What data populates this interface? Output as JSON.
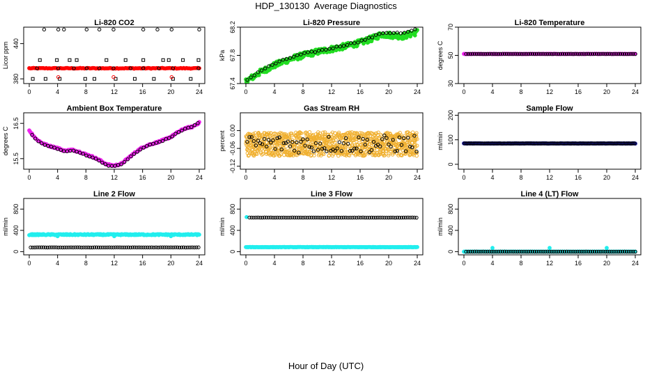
{
  "title": "HDP_130130  Average Diagnostics",
  "xlabel": "Hour of Day (UTC)",
  "colors": {
    "red": "#ff0000",
    "green": "#22dd22",
    "magenta": "#ee22ee",
    "orange": "#f0b030",
    "blue": "#1a1aa0",
    "cyan": "#22eeee",
    "black": "#000000"
  },
  "chart_data": [
    {
      "type": "scatter",
      "title": "Li-820 CO2",
      "ylabel": "Licor ppm",
      "xlim": [
        0,
        24
      ],
      "ylim": [
        372,
        468
      ],
      "xticks": [
        "0",
        "4",
        "8",
        "12",
        "16",
        "20",
        "24"
      ],
      "yticks": [
        "380",
        "440"
      ],
      "ytick_values": [
        380,
        440
      ],
      "series": [
        {
          "color": "red",
          "marker": "filled",
          "x_start": 0,
          "x_end": 24,
          "step": 0.2,
          "y_mode": "flat",
          "y": 398,
          "jitter": 0.6
        },
        {
          "color": "black",
          "marker": "open",
          "x": [
            1.1,
            4.1,
            6.3,
            8.1,
            9.9,
            11.9,
            14.3,
            16.1,
            18.3,
            20.3,
            23.9
          ],
          "y": [
            398,
            398,
            398,
            398,
            398,
            398,
            398,
            398,
            398,
            398,
            398
          ]
        },
        {
          "color": "black",
          "marker": "open",
          "x": [
            2.1,
            4.1,
            4.9,
            8.1,
            9.9,
            11.9,
            16.1,
            18.1,
            20.1,
            24.0
          ],
          "y": [
            464,
            464,
            464,
            464,
            464,
            464,
            464,
            464,
            464,
            464
          ]
        },
        {
          "color": "black",
          "marker": "square",
          "x": [
            0.5,
            1.5,
            2.3,
            3.9,
            4.3,
            5.7,
            6.7,
            7.9,
            9.2,
            10.9,
            12.2,
            13.6,
            14.9,
            16.1,
            17.6,
            18.9,
            19.7,
            20.3,
            21.7,
            22.8,
            23.9
          ],
          "y": [
            380,
            412,
            380,
            412,
            380,
            412,
            412,
            380,
            380,
            412,
            380,
            412,
            380,
            412,
            380,
            412,
            412,
            380,
            412,
            380,
            412
          ]
        },
        {
          "color": "red",
          "marker": "open",
          "x": [
            4.1,
            11.9,
            20.1
          ],
          "y": [
            383,
            383,
            383
          ]
        }
      ]
    },
    {
      "type": "scatter",
      "title": "Li-820 Pressure",
      "ylabel": "kPa",
      "xlim": [
        0,
        24
      ],
      "ylim": [
        67.4,
        68.2
      ],
      "xticks": [
        "0",
        "4",
        "8",
        "12",
        "16",
        "20",
        "24"
      ],
      "yticks": [
        "67.4",
        "67.8",
        "68.2"
      ],
      "ytick_values": [
        67.4,
        67.8,
        68.2
      ],
      "series": [
        {
          "color": "green",
          "marker": "filled",
          "x_start": 0,
          "x_end": 24,
          "step": 0.08,
          "y_mode": "knots",
          "knots": [
            [
              0,
              67.43
            ],
            [
              2,
              67.56
            ],
            [
              4,
              67.66
            ],
            [
              6,
              67.74
            ],
            [
              8,
              67.8
            ],
            [
              10,
              67.85
            ],
            [
              12,
              67.89
            ],
            [
              14,
              67.93
            ],
            [
              16,
              67.98
            ],
            [
              18,
              68.05
            ],
            [
              19,
              68.1
            ],
            [
              20,
              68.09
            ],
            [
              21,
              68.08
            ],
            [
              22,
              68.07
            ],
            [
              24,
              68.13
            ]
          ],
          "jitter": 0.04
        },
        {
          "color": "black",
          "marker": "open",
          "x_start": 0.2,
          "x_end": 24,
          "step": 0.5,
          "y_mode": "knots",
          "knots": [
            [
              0,
              67.44
            ],
            [
              2,
              67.58
            ],
            [
              4,
              67.68
            ],
            [
              6,
              67.76
            ],
            [
              8,
              67.82
            ],
            [
              10,
              67.86
            ],
            [
              12,
              67.9
            ],
            [
              14,
              67.95
            ],
            [
              16,
              68.0
            ],
            [
              18,
              68.07
            ],
            [
              19,
              68.12
            ],
            [
              20,
              68.12
            ],
            [
              21,
              68.12
            ],
            [
              22,
              68.11
            ],
            [
              24,
              68.17
            ]
          ],
          "jitter": 0.01
        }
      ]
    },
    {
      "type": "scatter",
      "title": "Li-820 Temperature",
      "ylabel": "degrees C",
      "xlim": [
        0,
        24
      ],
      "ylim": [
        30,
        70
      ],
      "xticks": [
        "0",
        "4",
        "8",
        "12",
        "16",
        "20",
        "24"
      ],
      "yticks": [
        "30",
        "50",
        "70"
      ],
      "ytick_values": [
        30,
        50,
        70
      ],
      "series": [
        {
          "color": "magenta",
          "marker": "filled",
          "x_start": 0,
          "x_end": 24,
          "step": 0.15,
          "y_mode": "flat",
          "y": 51,
          "jitter": 0.1
        },
        {
          "color": "black",
          "marker": "open",
          "x_start": 0.3,
          "x_end": 24,
          "step": 0.3,
          "y_mode": "flat",
          "y": 51,
          "jitter": 0.05
        }
      ]
    },
    {
      "type": "scatter",
      "title": "Ambient Box Temperature",
      "ylabel": "degrees C",
      "xlim": [
        0,
        24
      ],
      "ylim": [
        15.2,
        16.8
      ],
      "xticks": [
        "0",
        "4",
        "8",
        "12",
        "16",
        "20",
        "24"
      ],
      "yticks": [
        "15.5",
        "16.5"
      ],
      "ytick_values": [
        15.5,
        16.5
      ],
      "series": [
        {
          "color": "magenta",
          "marker": "filled",
          "x_start": 0,
          "x_end": 24,
          "step": 0.1,
          "y_mode": "knots",
          "knots": [
            [
              0,
              16.3
            ],
            [
              1,
              16.05
            ],
            [
              2,
              15.92
            ],
            [
              3,
              15.85
            ],
            [
              4,
              15.8
            ],
            [
              5,
              15.72
            ],
            [
              6,
              15.75
            ],
            [
              7,
              15.7
            ],
            [
              8,
              15.62
            ],
            [
              9,
              15.55
            ],
            [
              10,
              15.45
            ],
            [
              11,
              15.33
            ],
            [
              12,
              15.3
            ],
            [
              13,
              15.35
            ],
            [
              14,
              15.52
            ],
            [
              15,
              15.68
            ],
            [
              16,
              15.82
            ],
            [
              17,
              15.9
            ],
            [
              18,
              15.96
            ],
            [
              19,
              16.03
            ],
            [
              20,
              16.12
            ],
            [
              21,
              16.25
            ],
            [
              22,
              16.36
            ],
            [
              23,
              16.4
            ],
            [
              24,
              16.52
            ]
          ],
          "jitter": 0.02
        },
        {
          "color": "black",
          "marker": "open",
          "x_start": 0.4,
          "x_end": 24,
          "step": 0.45,
          "y_mode": "knots",
          "knots": [
            [
              0,
              16.28
            ],
            [
              1,
              16.03
            ],
            [
              2,
              15.9
            ],
            [
              3,
              15.84
            ],
            [
              4,
              15.78
            ],
            [
              5,
              15.7
            ],
            [
              6,
              15.73
            ],
            [
              7,
              15.68
            ],
            [
              8,
              15.6
            ],
            [
              9,
              15.53
            ],
            [
              10,
              15.43
            ],
            [
              11,
              15.31
            ],
            [
              12,
              15.28
            ],
            [
              13,
              15.34
            ],
            [
              14,
              15.5
            ],
            [
              15,
              15.66
            ],
            [
              16,
              15.8
            ],
            [
              17,
              15.89
            ],
            [
              18,
              15.95
            ],
            [
              19,
              16.02
            ],
            [
              20,
              16.11
            ],
            [
              21,
              16.24
            ],
            [
              22,
              16.35
            ],
            [
              23,
              16.4
            ],
            [
              24,
              16.54
            ]
          ],
          "jitter": 0.01
        }
      ]
    },
    {
      "type": "scatter",
      "title": "Gas Stream RH",
      "ylabel": "percent",
      "xlim": [
        0,
        24
      ],
      "ylim": [
        -0.13,
        0.06
      ],
      "xticks": [
        "0",
        "4",
        "8",
        "12",
        "16",
        "20",
        "24"
      ],
      "yticks": [
        "-0.12",
        "-0.06",
        "0.00"
      ],
      "ytick_values": [
        -0.12,
        -0.06,
        0.0
      ],
      "series": [
        {
          "color": "orange",
          "marker": "open",
          "x_start": 0,
          "x_end": 24,
          "step": 0.025,
          "y_mode": "band",
          "center": -0.045,
          "jitter": 0.04
        },
        {
          "color": "black",
          "marker": "open",
          "x_start": 0.2,
          "x_end": 24,
          "step": 0.3,
          "y_mode": "band",
          "center": -0.045,
          "jitter": 0.03
        }
      ]
    },
    {
      "type": "scatter",
      "title": "Sample Flow",
      "ylabel": "ml/min",
      "xlim": [
        0,
        24
      ],
      "ylim": [
        -20,
        210
      ],
      "xticks": [
        "0",
        "4",
        "8",
        "12",
        "16",
        "20",
        "24"
      ],
      "yticks": [
        "0",
        "100",
        "200"
      ],
      "ytick_values": [
        0,
        100,
        200
      ],
      "series": [
        {
          "color": "blue",
          "marker": "filled",
          "x_start": 0,
          "x_end": 24,
          "step": 0.15,
          "y_mode": "flat",
          "y": 85,
          "jitter": 0.5
        },
        {
          "color": "black",
          "marker": "open",
          "x_start": 0.1,
          "x_end": 24,
          "step": 0.2,
          "y_mode": "flat",
          "y": 85,
          "jitter": 0.3
        }
      ]
    },
    {
      "type": "scatter",
      "title": "Line 2 Flow",
      "ylabel": "ml/min",
      "xlim": [
        0,
        24
      ],
      "ylim": [
        -60,
        1000
      ],
      "xticks": [
        "0",
        "4",
        "8",
        "12",
        "16",
        "20",
        "24"
      ],
      "yticks": [
        "0",
        "400",
        "800"
      ],
      "ytick_values": [
        0,
        400,
        800
      ],
      "series": [
        {
          "color": "cyan",
          "marker": "filled",
          "x_start": 0,
          "x_end": 24,
          "step": 0.1,
          "y_mode": "flat",
          "y": 320,
          "jitter": 10
        },
        {
          "color": "black",
          "marker": "open",
          "x_start": 0.2,
          "x_end": 24,
          "step": 0.3,
          "y_mode": "flat",
          "y": 80,
          "jitter": 2
        },
        {
          "color": "cyan",
          "marker": "filled",
          "x": [
            4.0,
            12.0,
            20.0
          ],
          "y": [
            290,
            290,
            290
          ]
        }
      ]
    },
    {
      "type": "scatter",
      "title": "Line 3 Flow",
      "ylabel": "ml/min",
      "xlim": [
        0,
        24
      ],
      "ylim": [
        -60,
        1000
      ],
      "xticks": [
        "0",
        "4",
        "8",
        "12",
        "16",
        "20",
        "24"
      ],
      "yticks": [
        "0",
        "400",
        "800"
      ],
      "ytick_values": [
        0,
        400,
        800
      ],
      "series": [
        {
          "color": "cyan",
          "marker": "filled",
          "x_start": 0,
          "x_end": 24,
          "step": 0.1,
          "y_mode": "flat",
          "y": 85,
          "jitter": 3
        },
        {
          "color": "cyan",
          "marker": "filled",
          "x": [
            0.1
          ],
          "y": [
            650
          ]
        },
        {
          "color": "black",
          "marker": "open",
          "x_start": 0.5,
          "x_end": 24,
          "step": 0.3,
          "y_mode": "flat",
          "y": 640,
          "jitter": 2
        }
      ]
    },
    {
      "type": "scatter",
      "title": "Line 4 (LT) Flow",
      "ylabel": "ml/min",
      "xlim": [
        0,
        24
      ],
      "ylim": [
        -60,
        1000
      ],
      "xticks": [
        "0",
        "4",
        "8",
        "12",
        "16",
        "20",
        "24"
      ],
      "yticks": [
        "0",
        "400",
        "800"
      ],
      "ytick_values": [
        0,
        400,
        800
      ],
      "series": [
        {
          "color": "cyan",
          "marker": "filled",
          "x_start": 0,
          "x_end": 24,
          "step": 0.15,
          "y_mode": "flat",
          "y": 0,
          "jitter": 1
        },
        {
          "color": "cyan",
          "marker": "filled",
          "x": [
            4.0,
            12.0,
            20.0
          ],
          "y": [
            70,
            70,
            70
          ]
        },
        {
          "color": "black",
          "marker": "open",
          "x_start": 0.3,
          "x_end": 24,
          "step": 0.3,
          "y_mode": "flat",
          "y": 0,
          "jitter": 0.5
        }
      ]
    }
  ]
}
